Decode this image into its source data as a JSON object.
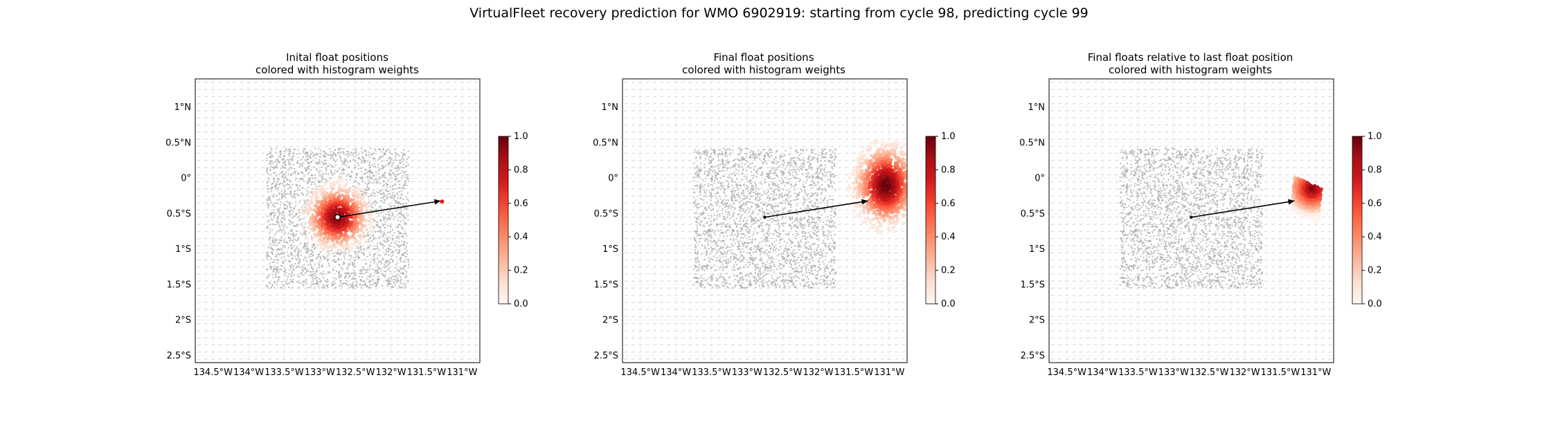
{
  "figure": {
    "title": "VirtualFleet recovery prediction for WMO 6902919: starting from cycle 98, predicting cycle 99"
  },
  "colors": {
    "colormap": [
      "#fff5f0",
      "#fee0d2",
      "#fcbba1",
      "#fc9272",
      "#fb6a4a",
      "#ef3b2c",
      "#cb181d",
      "#a50f15",
      "#67000d"
    ],
    "float_cloud": "#a9a9a9",
    "arrow": "#000000",
    "grid": "#e6e6e6",
    "velocity_arrows": "#c8c8c8"
  },
  "chart_data": [
    {
      "type": "scatter",
      "title_line1": "Inital float positions",
      "title_line2": "colored with histogram weights",
      "xlabel": "",
      "ylabel": "",
      "xlim": [
        -134.75,
        -130.75
      ],
      "ylim": [
        -2.6,
        1.4
      ],
      "xticks": [
        -134.5,
        -134,
        -133.5,
        -133,
        -132.5,
        -132,
        -131.5,
        -131
      ],
      "xtick_labels": [
        "134.5°W",
        "134°W",
        "133.5°W",
        "133°W",
        "132.5°W",
        "132°W",
        "131.5°W",
        "131°W"
      ],
      "yticks": [
        1,
        0.5,
        0,
        -0.5,
        -1,
        -1.5,
        -2,
        -2.5
      ],
      "ytick_labels": [
        "1°N",
        "0.5°N",
        "0°",
        "0.5°S",
        "1°S",
        "1.5°S",
        "2°S",
        "2.5°S"
      ],
      "grid": true,
      "float_cloud_box": {
        "lon": [
          -133.75,
          -131.75
        ],
        "lat": [
          -1.55,
          0.42
        ]
      },
      "weights_peak": {
        "lon": -132.75,
        "lat": -0.55
      },
      "arrow": {
        "from": [
          -132.75,
          -0.55
        ],
        "to": [
          -131.3,
          -0.32
        ]
      },
      "colorbar": {
        "min": 0.0,
        "max": 1.0,
        "ticks": [
          "0.0",
          "0.2",
          "0.4",
          "0.6",
          "0.8",
          "1.0"
        ]
      }
    },
    {
      "type": "scatter",
      "title_line1": "Final float positions",
      "title_line2": "colored with histogram weights",
      "xlabel": "",
      "ylabel": "",
      "xlim": [
        -134.75,
        -130.75
      ],
      "ylim": [
        -2.6,
        1.4
      ],
      "xticks": [
        -134.5,
        -134,
        -133.5,
        -133,
        -132.5,
        -132,
        -131.5,
        -131
      ],
      "xtick_labels": [
        "134.5°W",
        "134°W",
        "133.5°W",
        "133°W",
        "132.5°W",
        "132°W",
        "131.5°W",
        "131°W"
      ],
      "yticks": [
        1,
        0.5,
        0,
        -0.5,
        -1,
        -1.5,
        -2,
        -2.5
      ],
      "ytick_labels": [
        "1°N",
        "0.5°N",
        "0°",
        "0.5°S",
        "1°S",
        "1.5°S",
        "2°S",
        "2.5°S"
      ],
      "grid": true,
      "float_cloud_box": {
        "lon": [
          -133.75,
          -131.75
        ],
        "lat": [
          -1.55,
          0.42
        ]
      },
      "weights_peak": {
        "lon": -131.05,
        "lat": -0.1
      },
      "arrow": {
        "from": [
          -132.75,
          -0.55
        ],
        "to": [
          -131.3,
          -0.32
        ]
      },
      "colorbar": {
        "min": 0.0,
        "max": 1.0,
        "ticks": [
          "0.0",
          "0.2",
          "0.4",
          "0.6",
          "0.8",
          "1.0"
        ]
      }
    },
    {
      "type": "scatter",
      "title_line1": "Final floats relative to last float position",
      "title_line2": "colored with histogram weights",
      "xlabel": "",
      "ylabel": "",
      "xlim": [
        -134.75,
        -130.75
      ],
      "ylim": [
        -2.6,
        1.4
      ],
      "xticks": [
        -134.5,
        -134,
        -133.5,
        -133,
        -132.5,
        -132,
        -131.5,
        -131
      ],
      "xtick_labels": [
        "134.5°W",
        "134°W",
        "133.5°W",
        "133°W",
        "132.5°W",
        "132°W",
        "131.5°W",
        "131°W"
      ],
      "yticks": [
        1,
        0.5,
        0,
        -0.5,
        -1,
        -1.5,
        -2,
        -2.5
      ],
      "ytick_labels": [
        "1°N",
        "0.5°N",
        "0°",
        "0.5°S",
        "1°S",
        "1.5°S",
        "2°S",
        "2.5°S"
      ],
      "grid": true,
      "float_cloud_box": {
        "lon": [
          -133.75,
          -131.75
        ],
        "lat": [
          -1.55,
          0.42
        ]
      },
      "weights_peak": {
        "lon": -131.05,
        "lat": -0.15
      },
      "arrow": {
        "from": [
          -132.75,
          -0.55
        ],
        "to": [
          -131.3,
          -0.32
        ]
      },
      "colorbar": {
        "min": 0.0,
        "max": 1.0,
        "ticks": [
          "0.0",
          "0.2",
          "0.4",
          "0.6",
          "0.8",
          "1.0"
        ]
      }
    }
  ]
}
